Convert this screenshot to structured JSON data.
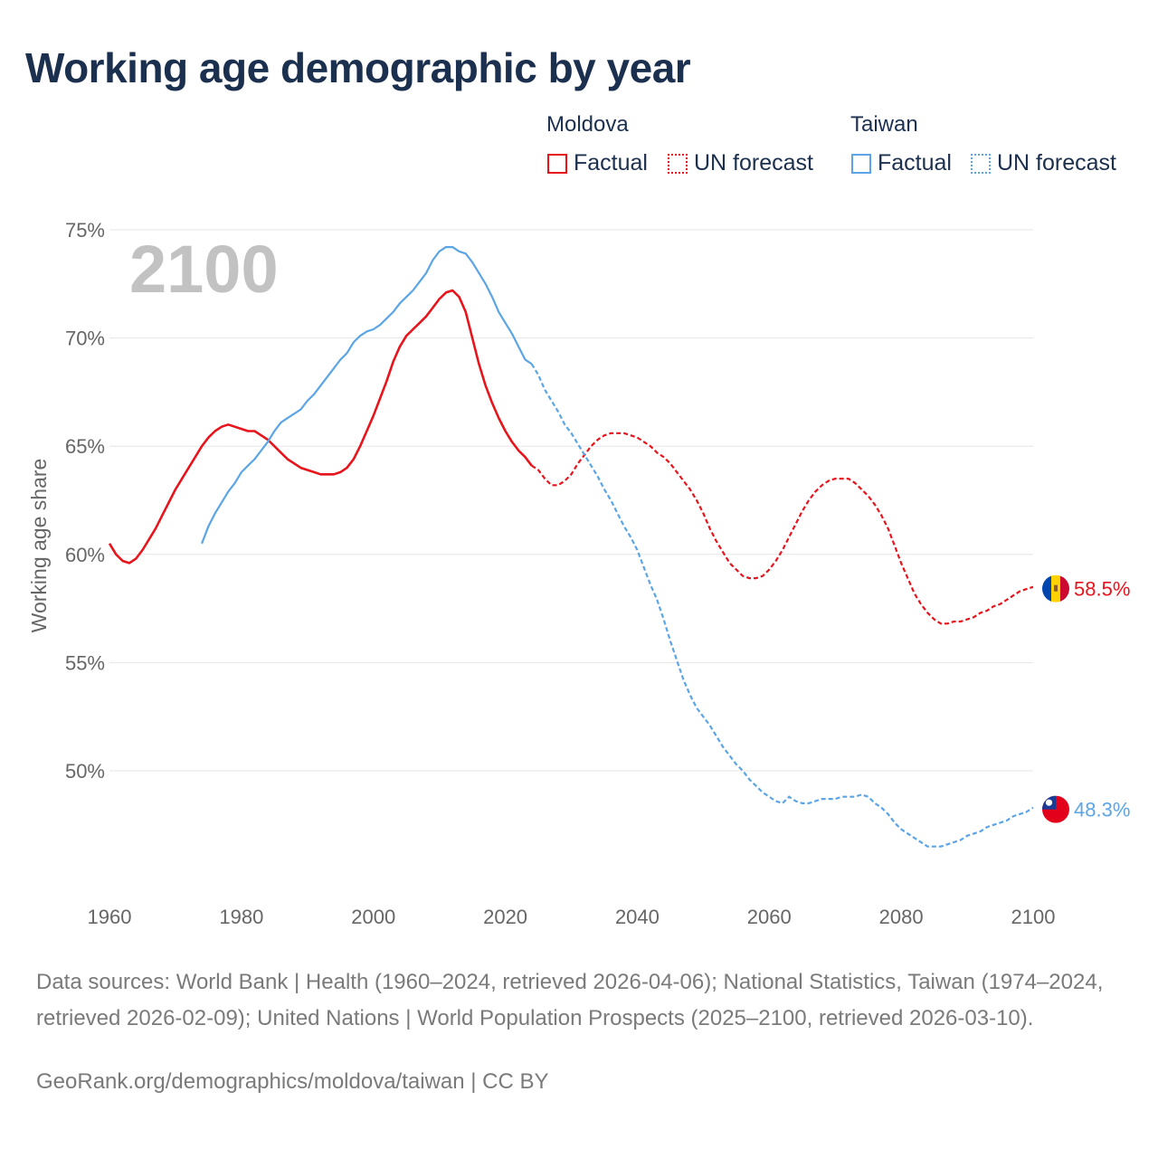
{
  "title": "Working age demographic by year",
  "legend": {
    "groups": [
      {
        "name": "Moldova",
        "factual": "Factual",
        "forecast": "UN forecast"
      },
      {
        "name": "Taiwan",
        "factual": "Factual",
        "forecast": "UN forecast"
      }
    ]
  },
  "colors": {
    "moldova": "#e8141c",
    "taiwan": "#5ba5e6",
    "grid": "#e6e6e6",
    "axis_text": "#666666",
    "year_watermark": "#c2c2c2"
  },
  "chart_data": {
    "type": "line",
    "title": "Working age demographic by year",
    "year_label": "2100",
    "xlabel": "",
    "ylabel": "Working age share",
    "xlim": [
      1958,
      2100
    ],
    "ylim": [
      44.5,
      75.5
    ],
    "x_ticks": [
      1960,
      1980,
      2000,
      2020,
      2040,
      2060,
      2080,
      2100
    ],
    "y_ticks": [
      50,
      55,
      60,
      65,
      70,
      75
    ],
    "y_tick_labels": [
      "50%",
      "55%",
      "60%",
      "65%",
      "70%",
      "75%"
    ],
    "series": [
      {
        "name": "Moldova",
        "color": "#e8141c",
        "end_label": "58.5%",
        "factual": {
          "x": [
            1960,
            1961,
            1962,
            1963,
            1964,
            1965,
            1966,
            1967,
            1968,
            1969,
            1970,
            1971,
            1972,
            1973,
            1974,
            1975,
            1976,
            1977,
            1978,
            1979,
            1980,
            1981,
            1982,
            1983,
            1984,
            1985,
            1986,
            1987,
            1988,
            1989,
            1990,
            1991,
            1992,
            1993,
            1994,
            1995,
            1996,
            1997,
            1998,
            1999,
            2000,
            2001,
            2002,
            2003,
            2004,
            2005,
            2006,
            2007,
            2008,
            2009,
            2010,
            2011,
            2012,
            2013,
            2014,
            2015,
            2016,
            2017,
            2018,
            2019,
            2020,
            2021,
            2022,
            2023,
            2024
          ],
          "y": [
            60.5,
            60.0,
            59.7,
            59.6,
            59.8,
            60.2,
            60.7,
            61.2,
            61.8,
            62.4,
            63.0,
            63.5,
            64.0,
            64.5,
            65.0,
            65.4,
            65.7,
            65.9,
            66.0,
            65.9,
            65.8,
            65.7,
            65.7,
            65.5,
            65.3,
            65.0,
            64.7,
            64.4,
            64.2,
            64.0,
            63.9,
            63.8,
            63.7,
            63.7,
            63.7,
            63.8,
            64.0,
            64.4,
            65.0,
            65.7,
            66.4,
            67.2,
            68.0,
            68.9,
            69.6,
            70.1,
            70.4,
            70.7,
            71.0,
            71.4,
            71.8,
            72.1,
            72.2,
            71.9,
            71.2,
            70.0,
            68.8,
            67.8,
            67.0,
            66.3,
            65.7,
            65.2,
            64.8,
            64.5,
            64.1
          ]
        },
        "forecast": {
          "x": [
            2024,
            2025,
            2026,
            2027,
            2028,
            2029,
            2030,
            2031,
            2032,
            2033,
            2034,
            2035,
            2036,
            2037,
            2038,
            2039,
            2040,
            2041,
            2042,
            2043,
            2044,
            2045,
            2046,
            2047,
            2048,
            2049,
            2050,
            2051,
            2052,
            2053,
            2054,
            2055,
            2056,
            2057,
            2058,
            2059,
            2060,
            2061,
            2062,
            2063,
            2064,
            2065,
            2066,
            2067,
            2068,
            2069,
            2070,
            2071,
            2072,
            2073,
            2074,
            2075,
            2076,
            2077,
            2078,
            2079,
            2080,
            2081,
            2082,
            2083,
            2084,
            2085,
            2086,
            2087,
            2088,
            2089,
            2090,
            2091,
            2092,
            2093,
            2094,
            2095,
            2096,
            2097,
            2098,
            2099,
            2100
          ],
          "y": [
            64.1,
            63.9,
            63.5,
            63.2,
            63.2,
            63.4,
            63.7,
            64.2,
            64.6,
            65.0,
            65.3,
            65.5,
            65.6,
            65.6,
            65.6,
            65.5,
            65.4,
            65.2,
            65.0,
            64.7,
            64.5,
            64.2,
            63.8,
            63.4,
            63.0,
            62.5,
            61.9,
            61.2,
            60.6,
            60.1,
            59.6,
            59.3,
            59.0,
            58.9,
            58.9,
            59.0,
            59.3,
            59.7,
            60.2,
            60.8,
            61.4,
            62.0,
            62.5,
            62.9,
            63.2,
            63.4,
            63.5,
            63.5,
            63.5,
            63.3,
            63.0,
            62.7,
            62.3,
            61.8,
            61.2,
            60.4,
            59.6,
            58.9,
            58.2,
            57.7,
            57.3,
            57.0,
            56.8,
            56.8,
            56.9,
            56.9,
            57.0,
            57.1,
            57.3,
            57.4,
            57.6,
            57.7,
            57.9,
            58.1,
            58.3,
            58.4,
            58.5
          ]
        }
      },
      {
        "name": "Taiwan",
        "color": "#5ba5e6",
        "end_label": "48.3%",
        "factual": {
          "x": [
            1974,
            1975,
            1976,
            1977,
            1978,
            1979,
            1980,
            1981,
            1982,
            1983,
            1984,
            1985,
            1986,
            1987,
            1988,
            1989,
            1990,
            1991,
            1992,
            1993,
            1994,
            1995,
            1996,
            1997,
            1998,
            1999,
            2000,
            2001,
            2002,
            2003,
            2004,
            2005,
            2006,
            2007,
            2008,
            2009,
            2010,
            2011,
            2012,
            2013,
            2014,
            2015,
            2016,
            2017,
            2018,
            2019,
            2020,
            2021,
            2022,
            2023,
            2024
          ],
          "y": [
            60.5,
            61.3,
            61.9,
            62.4,
            62.9,
            63.3,
            63.8,
            64.1,
            64.4,
            64.8,
            65.2,
            65.7,
            66.1,
            66.3,
            66.5,
            66.7,
            67.1,
            67.4,
            67.8,
            68.2,
            68.6,
            69.0,
            69.3,
            69.8,
            70.1,
            70.3,
            70.4,
            70.6,
            70.9,
            71.2,
            71.6,
            71.9,
            72.2,
            72.6,
            73.0,
            73.6,
            74.0,
            74.2,
            74.2,
            74.0,
            73.9,
            73.5,
            73.0,
            72.5,
            71.9,
            71.2,
            70.7,
            70.2,
            69.6,
            69.0,
            68.8
          ]
        },
        "forecast": {
          "x": [
            2024,
            2025,
            2026,
            2027,
            2028,
            2029,
            2030,
            2031,
            2032,
            2033,
            2034,
            2035,
            2036,
            2037,
            2038,
            2039,
            2040,
            2041,
            2042,
            2043,
            2044,
            2045,
            2046,
            2047,
            2048,
            2049,
            2050,
            2051,
            2052,
            2053,
            2054,
            2055,
            2056,
            2057,
            2058,
            2059,
            2060,
            2061,
            2062,
            2063,
            2064,
            2065,
            2066,
            2067,
            2068,
            2069,
            2070,
            2071,
            2072,
            2073,
            2074,
            2075,
            2076,
            2077,
            2078,
            2079,
            2080,
            2081,
            2082,
            2083,
            2084,
            2085,
            2086,
            2087,
            2088,
            2089,
            2090,
            2091,
            2092,
            2093,
            2094,
            2095,
            2096,
            2097,
            2098,
            2099,
            2100
          ],
          "y": [
            68.8,
            68.3,
            67.6,
            67.1,
            66.6,
            66.0,
            65.6,
            65.1,
            64.6,
            64.1,
            63.6,
            63.0,
            62.5,
            61.9,
            61.3,
            60.8,
            60.2,
            59.4,
            58.6,
            57.9,
            57.0,
            56.0,
            55.1,
            54.2,
            53.5,
            52.9,
            52.5,
            52.1,
            51.6,
            51.1,
            50.7,
            50.3,
            50.0,
            49.6,
            49.3,
            49.0,
            48.8,
            48.6,
            48.5,
            48.8,
            48.6,
            48.5,
            48.5,
            48.6,
            48.7,
            48.7,
            48.7,
            48.8,
            48.8,
            48.8,
            48.9,
            48.8,
            48.5,
            48.3,
            48.0,
            47.6,
            47.3,
            47.1,
            46.9,
            46.7,
            46.5,
            46.5,
            46.5,
            46.6,
            46.7,
            46.8,
            47.0,
            47.1,
            47.2,
            47.4,
            47.5,
            47.6,
            47.7,
            47.9,
            48.0,
            48.1,
            48.3
          ]
        }
      }
    ]
  },
  "footer": {
    "sources": "Data sources: World Bank | Health (1960–2024, retrieved 2026-04-06); National Statistics, Taiwan (1974–2024, retrieved 2026-02-09); United Nations | World Population Prospects (2025–2100, retrieved 2026-03-10).",
    "url": "GeoRank.org/demographics/moldova/taiwan | CC BY"
  },
  "icons": {
    "moldova_flag": "moldova-flag-icon",
    "taiwan_flag": "taiwan-flag-icon"
  }
}
